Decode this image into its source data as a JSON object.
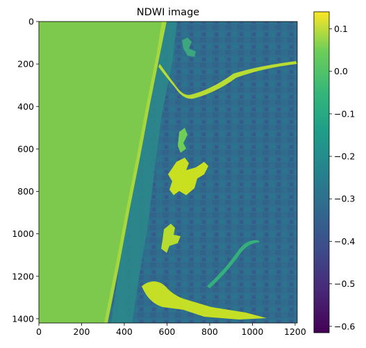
{
  "chart_data": {
    "type": "heatmap",
    "title": "NDWI image",
    "xlabel": "",
    "ylabel": "",
    "xlim": [
      0,
      1210
    ],
    "ylim": [
      1420,
      0
    ],
    "x_ticks": [
      "0",
      "200",
      "400",
      "600",
      "800",
      "1000",
      "1200"
    ],
    "y_ticks": [
      "0",
      "200",
      "400",
      "600",
      "800",
      "1000",
      "1200",
      "1400"
    ],
    "colorbar": {
      "colormap": "viridis",
      "range": [
        -0.615,
        0.14
      ],
      "ticks": [
        "0.1",
        "0.0",
        "−0.1",
        "−0.2",
        "−0.3",
        "−0.4",
        "−0.5",
        "−0.6"
      ]
    },
    "regions": [
      {
        "name": "ocean",
        "ndwi": 0.04
      },
      {
        "name": "coastline surf band",
        "ndwi": 0.09
      },
      {
        "name": "land",
        "ndwi": -0.33
      },
      {
        "name": "lakes",
        "ndwi": 0.12
      },
      {
        "name": "rivers",
        "ndwi": 0.1
      }
    ],
    "grid": false
  },
  "colors": {
    "ocean": "#7dc94d",
    "surf": "#a6d83e",
    "land": "#2f6c8e",
    "land_dark": "#35508b",
    "land_light": "#268b8c",
    "water_bright": "#c4df25"
  }
}
